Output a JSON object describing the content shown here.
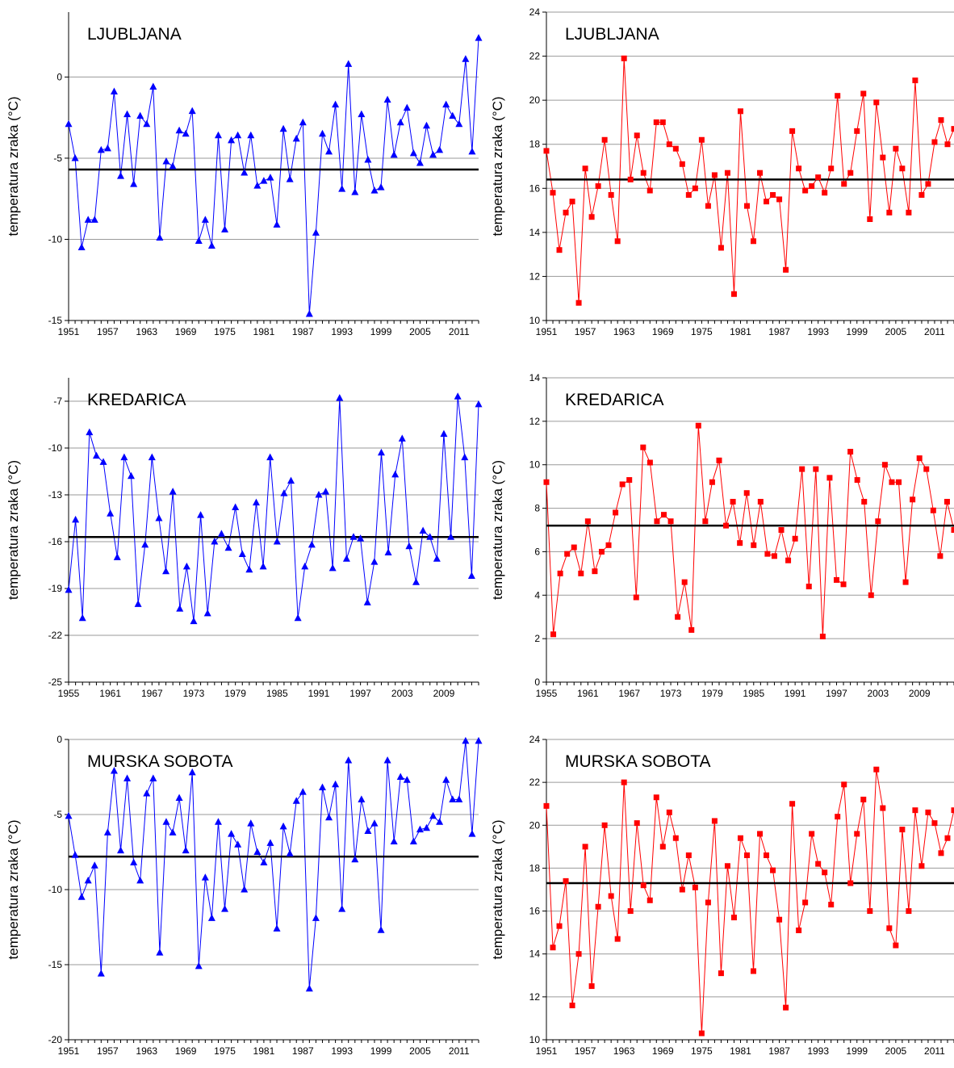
{
  "chart_data": [
    {
      "type": "line",
      "title": "LJUBLJANA",
      "ylabel": "temperatura zraka (°C)",
      "color": "#0000ff",
      "marker": "triangle",
      "ylim": [
        -15,
        4
      ],
      "yticks": [
        -15,
        -10,
        -5,
        0
      ],
      "xlim": [
        1951,
        2014
      ],
      "xticks": [
        "1951",
        "1957",
        "1963",
        "1969",
        "1975",
        "1981",
        "1987",
        "1993",
        "1999",
        "2005",
        "2011"
      ],
      "reference_line": -5.7,
      "grid": true,
      "series": [
        {
          "x_start": 1951,
          "values": [
            -2.9,
            -5.0,
            -10.5,
            -8.8,
            -8.8,
            -4.5,
            -4.4,
            -0.9,
            -6.1,
            -2.3,
            -6.6,
            -2.4,
            -2.9,
            -0.6,
            -9.9,
            -5.2,
            -5.5,
            -3.3,
            -3.5,
            -2.1,
            -10.1,
            -8.8,
            -10.4,
            -3.6,
            -9.4,
            -3.9,
            -3.6,
            -5.9,
            -3.6,
            -6.7,
            -6.4,
            -6.2,
            -9.1,
            -3.2,
            -6.3,
            -3.8,
            -2.8,
            -14.6,
            -9.6,
            -3.5,
            -4.6,
            -1.7,
            -6.9,
            0.8,
            -7.1,
            -2.3,
            -5.1,
            -7.0,
            -6.8,
            -1.4,
            -4.8,
            -2.8,
            -1.9,
            -4.7,
            -5.3,
            -3.0,
            -4.8,
            -4.5,
            -1.7,
            -2.4,
            -2.9,
            1.1,
            -4.6,
            2.4
          ]
        }
      ]
    },
    {
      "type": "line",
      "title": "LJUBLJANA",
      "ylabel": "temperatura zraka (°C)",
      "color": "#ff0000",
      "marker": "square",
      "ylim": [
        10,
        24
      ],
      "yticks": [
        10,
        12,
        14,
        16,
        18,
        20,
        22,
        24
      ],
      "xlim": [
        1951,
        2014
      ],
      "xticks": [
        "1951",
        "1957",
        "1963",
        "1969",
        "1975",
        "1981",
        "1987",
        "1993",
        "1999",
        "2005",
        "2011"
      ],
      "reference_line": 16.4,
      "grid": true,
      "series": [
        {
          "x_start": 1951,
          "values": [
            17.7,
            15.8,
            13.2,
            14.9,
            15.4,
            10.8,
            16.9,
            14.7,
            16.1,
            18.2,
            15.7,
            13.6,
            21.9,
            16.4,
            18.4,
            16.7,
            15.9,
            19.0,
            19.0,
            18.0,
            17.8,
            17.1,
            15.7,
            16.0,
            18.2,
            15.2,
            16.6,
            13.3,
            16.7,
            11.2,
            19.5,
            15.2,
            13.6,
            16.7,
            15.4,
            15.7,
            15.5,
            12.3,
            18.6,
            16.9,
            15.9,
            16.1,
            16.5,
            15.8,
            16.9,
            20.2,
            16.2,
            16.7,
            18.6,
            20.3,
            14.6,
            19.9,
            17.4,
            14.9,
            17.8,
            16.9,
            14.9,
            20.9,
            15.7,
            16.2,
            18.1,
            19.1,
            18.0,
            18.7
          ]
        }
      ]
    },
    {
      "type": "line",
      "title": "KREDARICA",
      "ylabel": "temperatura zraka (°C)",
      "color": "#0000ff",
      "marker": "triangle",
      "ylim": [
        -25,
        -5.5
      ],
      "yticks": [
        -25,
        -22,
        -19,
        -16,
        -13,
        -10,
        -7
      ],
      "xlim": [
        1955,
        2014
      ],
      "xticks": [
        "1955",
        "1961",
        "1967",
        "1973",
        "1979",
        "1985",
        "1991",
        "1997",
        "2003",
        "2009"
      ],
      "reference_line": -15.7,
      "grid": true,
      "series": [
        {
          "x_start": 1955,
          "values": [
            -19.1,
            -14.6,
            -20.9,
            -9.0,
            -10.5,
            -10.9,
            -14.2,
            -17.0,
            -10.6,
            -11.8,
            -20.0,
            -16.2,
            -10.6,
            -14.5,
            -17.9,
            -12.8,
            -20.3,
            -17.6,
            -21.1,
            -14.3,
            -20.6,
            -16.0,
            -15.5,
            -16.4,
            -13.8,
            -16.8,
            -17.8,
            -13.5,
            -17.6,
            -10.6,
            -16.0,
            -12.9,
            -12.1,
            -20.9,
            -17.6,
            -16.2,
            -13.0,
            -12.8,
            -17.7,
            -6.8,
            -17.1,
            -15.7,
            -15.8,
            -19.9,
            -17.3,
            -10.3,
            -16.7,
            -11.7,
            -9.4,
            -16.3,
            -18.6,
            -15.3,
            -15.7,
            -17.1,
            -9.1,
            -15.7,
            -6.7,
            -10.6,
            -18.2,
            -7.2
          ]
        }
      ]
    },
    {
      "type": "line",
      "title": "KREDARICA",
      "ylabel": "temperatura zraka (°C)",
      "color": "#ff0000",
      "marker": "square",
      "ylim": [
        0,
        14
      ],
      "yticks": [
        0,
        2,
        4,
        6,
        8,
        10,
        12,
        14
      ],
      "xlim": [
        1955,
        2014
      ],
      "xticks": [
        "1955",
        "1961",
        "1967",
        "1973",
        "1979",
        "1985",
        "1991",
        "1997",
        "2003",
        "2009"
      ],
      "reference_line": 7.2,
      "grid": true,
      "series": [
        {
          "x_start": 1955,
          "values": [
            9.2,
            2.2,
            5.0,
            5.9,
            6.2,
            5.0,
            7.4,
            5.1,
            6.0,
            6.3,
            7.8,
            9.1,
            9.3,
            3.9,
            10.8,
            10.1,
            7.4,
            7.7,
            7.4,
            3.0,
            4.6,
            2.4,
            11.8,
            7.4,
            9.2,
            10.2,
            7.2,
            8.3,
            6.4,
            8.7,
            6.3,
            8.3,
            5.9,
            5.8,
            7.0,
            5.6,
            6.6,
            9.8,
            4.4,
            9.8,
            2.1,
            9.4,
            4.7,
            4.5,
            10.6,
            9.3,
            8.3,
            4.0,
            7.4,
            10.0,
            9.2,
            9.2,
            4.6,
            8.4,
            10.3,
            9.8,
            7.9,
            5.8,
            8.3,
            7.0
          ]
        }
      ]
    },
    {
      "type": "line",
      "title": "MURSKA SOBOTA",
      "ylabel": "temperatura zraka (°C)",
      "color": "#0000ff",
      "marker": "triangle",
      "ylim": [
        -20,
        0
      ],
      "yticks": [
        -20,
        -15,
        -10,
        -5,
        0
      ],
      "xlim": [
        1951,
        2014
      ],
      "xticks": [
        "1951",
        "1957",
        "1963",
        "1969",
        "1975",
        "1981",
        "1987",
        "1993",
        "1999",
        "2005",
        "2011"
      ],
      "reference_line": -7.8,
      "grid": true,
      "series": [
        {
          "x_start": 1951,
          "values": [
            -5.1,
            -7.7,
            -10.5,
            -9.4,
            -8.4,
            -15.6,
            -6.2,
            -2.1,
            -7.4,
            -2.6,
            -8.2,
            -9.4,
            -3.6,
            -2.6,
            -14.2,
            -5.5,
            -6.2,
            -3.9,
            -7.4,
            -2.2,
            -15.1,
            -9.2,
            -11.9,
            -5.5,
            -11.3,
            -6.3,
            -7.0,
            -10.0,
            -5.6,
            -7.5,
            -8.2,
            -6.9,
            -12.6,
            -5.8,
            -7.6,
            -4.1,
            -3.5,
            -16.6,
            -11.9,
            -3.2,
            -5.2,
            -3.0,
            -11.3,
            -1.4,
            -8.0,
            -4.0,
            -6.1,
            -5.6,
            -12.7,
            -1.4,
            -6.8,
            -2.5,
            -2.7,
            -6.8,
            -6.0,
            -5.9,
            -5.1,
            -5.5,
            -2.7,
            -4.0,
            -4.0,
            -0.1,
            -6.3,
            -0.1
          ]
        }
      ]
    },
    {
      "type": "line",
      "title": "MURSKA SOBOTA",
      "ylabel": "temperatura zraka (°C)",
      "color": "#ff0000",
      "marker": "square",
      "ylim": [
        10,
        24
      ],
      "yticks": [
        10,
        12,
        14,
        16,
        18,
        20,
        22,
        24
      ],
      "xlim": [
        1951,
        2014
      ],
      "xticks": [
        "1951",
        "1957",
        "1963",
        "1969",
        "1975",
        "1981",
        "1987",
        "1993",
        "1999",
        "2005",
        "2011"
      ],
      "reference_line": 17.3,
      "grid": true,
      "series": [
        {
          "x_start": 1951,
          "values": [
            20.9,
            14.3,
            15.3,
            17.4,
            11.6,
            14.0,
            19.0,
            12.5,
            16.2,
            20.0,
            16.7,
            14.7,
            22.0,
            16.0,
            20.1,
            17.2,
            16.5,
            21.3,
            19.0,
            20.6,
            19.4,
            17.0,
            18.6,
            17.1,
            10.3,
            16.4,
            20.2,
            13.1,
            18.1,
            15.7,
            19.4,
            18.6,
            13.2,
            19.6,
            18.6,
            17.9,
            15.6,
            11.5,
            21.0,
            15.1,
            16.4,
            19.6,
            18.2,
            17.8,
            16.3,
            20.4,
            21.9,
            17.3,
            19.6,
            21.2,
            16.0,
            22.6,
            20.8,
            15.2,
            14.4,
            19.8,
            16.0,
            20.7,
            18.1,
            20.6,
            20.1,
            18.7,
            19.4,
            20.7
          ]
        }
      ]
    }
  ]
}
